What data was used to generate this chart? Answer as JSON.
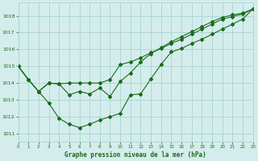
{
  "xlabel": "Graphe pression niveau de la mer (hPa)",
  "xlim": [
    0,
    23
  ],
  "ylim": [
    1010.5,
    1018.8
  ],
  "yticks": [
    1011,
    1012,
    1013,
    1014,
    1015,
    1016,
    1017,
    1018
  ],
  "xticks": [
    0,
    1,
    2,
    3,
    4,
    5,
    6,
    7,
    8,
    9,
    10,
    11,
    12,
    13,
    14,
    15,
    16,
    17,
    18,
    19,
    20,
    21,
    22,
    23
  ],
  "bg_color": "#d4edec",
  "grid_color": "#a8d4d0",
  "line_color": "#1a6b1a",
  "line1_y": [
    1015.0,
    1014.2,
    1013.5,
    1014.0,
    1013.95,
    1014.0,
    1014.0,
    1014.0,
    1014.0,
    1014.2,
    1015.1,
    1015.25,
    1015.5,
    1015.8,
    1016.05,
    1016.35,
    1016.6,
    1016.9,
    1017.2,
    1017.5,
    1017.8,
    1017.95,
    1018.1,
    1018.4
  ],
  "line2_y": [
    1015.0,
    1014.2,
    1013.5,
    1014.0,
    1013.95,
    1013.3,
    1013.5,
    1013.35,
    1013.7,
    1013.2,
    1014.1,
    1014.6,
    1015.25,
    1015.75,
    1016.1,
    1016.45,
    1016.75,
    1017.05,
    1017.35,
    1017.65,
    1017.9,
    1018.05,
    1018.15,
    1018.4
  ],
  "line3_y": [
    1015.0,
    1014.2,
    1013.5,
    1012.8,
    1011.9,
    1011.55,
    1011.35,
    1011.55,
    1011.8,
    1012.0,
    1012.2,
    1013.3,
    1013.35,
    1014.25,
    1015.1,
    1015.85,
    1016.05,
    1016.35,
    1016.6,
    1016.9,
    1017.2,
    1017.5,
    1017.8,
    1018.4
  ],
  "figwidth": 3.2,
  "figheight": 2.0,
  "dpi": 100
}
